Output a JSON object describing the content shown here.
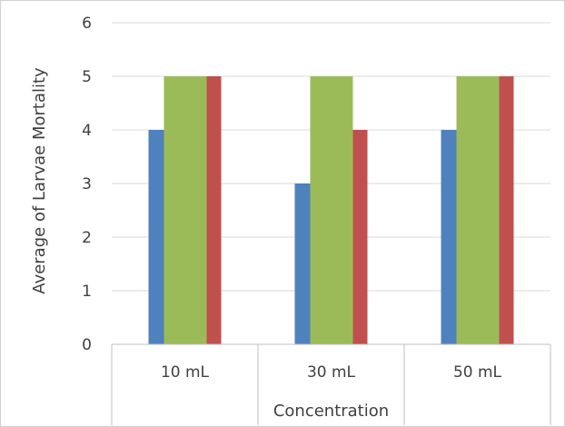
{
  "chart_data": {
    "type": "bar",
    "title": "",
    "xlabel": "Concentration",
    "ylabel": "Average of Larvae Mortality",
    "categories": [
      "10 mL",
      "30 mL",
      "50 mL"
    ],
    "series": [
      {
        "color": "#4F81BD",
        "values": [
          4,
          3,
          4
        ]
      },
      {
        "color": "#9BBB59",
        "values": [
          5,
          5,
          5
        ]
      },
      {
        "color": "#C0504D",
        "values": [
          5,
          4,
          5
        ]
      }
    ],
    "ylim": [
      0,
      6
    ],
    "yticks": [
      0,
      1,
      2,
      3,
      4,
      5,
      6
    ],
    "grid": true,
    "legend": "none"
  }
}
